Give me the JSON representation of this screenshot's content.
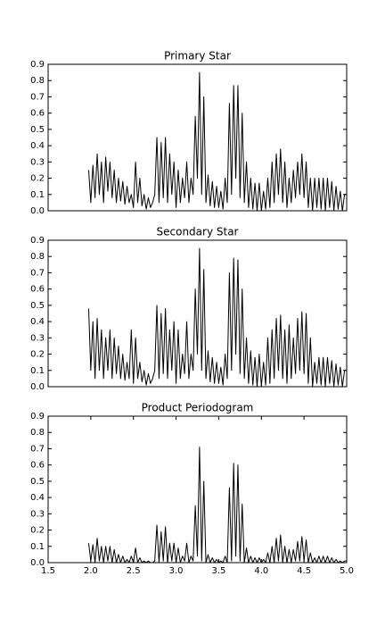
{
  "chart_data": [
    {
      "type": "line",
      "title": "Primary Star",
      "color": "#000000",
      "xlim": [
        1.5,
        5.0
      ],
      "ylim": [
        0,
        0.9
      ],
      "yticks": [
        {
          "value": 0,
          "label": "0.0"
        },
        0.1,
        0.2,
        0.3,
        0.4,
        0.5,
        0.6,
        0.7,
        0.8,
        0.9
      ],
      "x": [
        1.975,
        2.0,
        2.025,
        2.05,
        2.075,
        2.1,
        2.125,
        2.15,
        2.175,
        2.2,
        2.225,
        2.25,
        2.275,
        2.3,
        2.325,
        2.35,
        2.375,
        2.4,
        2.425,
        2.45,
        2.475,
        2.5,
        2.525,
        2.55,
        2.575,
        2.6,
        2.625,
        2.65,
        2.675,
        2.7,
        2.725,
        2.75,
        2.775,
        2.8,
        2.825,
        2.85,
        2.875,
        2.9,
        2.925,
        2.95,
        2.975,
        3.0,
        3.025,
        3.05,
        3.075,
        3.1,
        3.125,
        3.15,
        3.175,
        3.2,
        3.225,
        3.25,
        3.275,
        3.3,
        3.325,
        3.35,
        3.375,
        3.4,
        3.425,
        3.45,
        3.475,
        3.5,
        3.525,
        3.55,
        3.575,
        3.6,
        3.625,
        3.65,
        3.675,
        3.7,
        3.725,
        3.75,
        3.775,
        3.8,
        3.825,
        3.85,
        3.875,
        3.9,
        3.925,
        3.95,
        3.975,
        4.0,
        4.025,
        4.05,
        4.075,
        4.1,
        4.125,
        4.15,
        4.175,
        4.2,
        4.225,
        4.25,
        4.275,
        4.3,
        4.325,
        4.35,
        4.375,
        4.4,
        4.425,
        4.45,
        4.475,
        4.5,
        4.525,
        4.55,
        4.575,
        4.6,
        4.625,
        4.65,
        4.675,
        4.7,
        4.725,
        4.75,
        4.775,
        4.8,
        4.825,
        4.85,
        4.875,
        4.9,
        4.925,
        4.95,
        4.975,
        5.0
      ],
      "values": [
        0.25,
        0.05,
        0.28,
        0.08,
        0.35,
        0.1,
        0.3,
        0.05,
        0.33,
        0.12,
        0.3,
        0.08,
        0.25,
        0.05,
        0.2,
        0.06,
        0.18,
        0.04,
        0.15,
        0.05,
        0.1,
        0.02,
        0.3,
        0.05,
        0.2,
        0.03,
        0.1,
        0.01,
        0.08,
        0.02,
        0.05,
        0.1,
        0.45,
        0.05,
        0.42,
        0.08,
        0.45,
        0.05,
        0.35,
        0.1,
        0.3,
        0.02,
        0.25,
        0.05,
        0.2,
        0.08,
        0.3,
        0.05,
        0.2,
        0.1,
        0.58,
        0.2,
        0.85,
        0.1,
        0.7,
        0.05,
        0.22,
        0.03,
        0.18,
        0.02,
        0.15,
        0.02,
        0.12,
        0.01,
        0.2,
        0.05,
        0.66,
        0.1,
        0.77,
        0.2,
        0.77,
        0.08,
        0.6,
        0.05,
        0.3,
        0.02,
        0.2,
        0.01,
        0.17,
        0.0,
        0.17,
        0.0,
        0.12,
        0.01,
        0.2,
        0.02,
        0.3,
        0.05,
        0.35,
        0.1,
        0.38,
        0.05,
        0.3,
        0.02,
        0.2,
        0.05,
        0.25,
        0.08,
        0.3,
        0.1,
        0.35,
        0.08,
        0.3,
        0.02,
        0.2,
        0.0,
        0.2,
        0.02,
        0.2,
        0.01,
        0.2,
        0.0,
        0.2,
        0.02,
        0.18,
        0.0,
        0.15,
        0.01,
        0.12,
        0.0,
        0.1,
        0.1
      ]
    },
    {
      "type": "line",
      "title": "Secondary Star",
      "color": "#000000",
      "xlim": [
        1.5,
        5.0
      ],
      "ylim": [
        0,
        0.9
      ],
      "yticks": [
        {
          "value": 0,
          "label": "0.0"
        },
        0.1,
        0.2,
        0.3,
        0.4,
        0.5,
        0.6,
        0.7,
        0.8,
        0.9
      ],
      "x": [
        1.975,
        2.0,
        2.025,
        2.05,
        2.075,
        2.1,
        2.125,
        2.15,
        2.175,
        2.2,
        2.225,
        2.25,
        2.275,
        2.3,
        2.325,
        2.35,
        2.375,
        2.4,
        2.425,
        2.45,
        2.475,
        2.5,
        2.525,
        2.55,
        2.575,
        2.6,
        2.625,
        2.65,
        2.675,
        2.7,
        2.725,
        2.75,
        2.775,
        2.8,
        2.825,
        2.85,
        2.875,
        2.9,
        2.925,
        2.95,
        2.975,
        3.0,
        3.025,
        3.05,
        3.075,
        3.1,
        3.125,
        3.15,
        3.175,
        3.2,
        3.225,
        3.25,
        3.275,
        3.3,
        3.325,
        3.35,
        3.375,
        3.4,
        3.425,
        3.45,
        3.475,
        3.5,
        3.525,
        3.55,
        3.575,
        3.6,
        3.625,
        3.65,
        3.675,
        3.7,
        3.725,
        3.75,
        3.775,
        3.8,
        3.825,
        3.85,
        3.875,
        3.9,
        3.925,
        3.95,
        3.975,
        4.0,
        4.025,
        4.05,
        4.075,
        4.1,
        4.125,
        4.15,
        4.175,
        4.2,
        4.225,
        4.25,
        4.275,
        4.3,
        4.325,
        4.35,
        4.375,
        4.4,
        4.425,
        4.45,
        4.475,
        4.5,
        4.525,
        4.55,
        4.575,
        4.6,
        4.625,
        4.65,
        4.675,
        4.7,
        4.725,
        4.75,
        4.775,
        4.8,
        4.825,
        4.85,
        4.875,
        4.9,
        4.925,
        4.95,
        4.975,
        5.0
      ],
      "values": [
        0.48,
        0.1,
        0.4,
        0.05,
        0.42,
        0.1,
        0.35,
        0.05,
        0.3,
        0.1,
        0.35,
        0.05,
        0.3,
        0.08,
        0.25,
        0.05,
        0.2,
        0.04,
        0.15,
        0.05,
        0.35,
        0.02,
        0.3,
        0.05,
        0.15,
        0.03,
        0.1,
        0.01,
        0.08,
        0.02,
        0.05,
        0.1,
        0.5,
        0.05,
        0.45,
        0.08,
        0.48,
        0.05,
        0.35,
        0.1,
        0.4,
        0.02,
        0.35,
        0.05,
        0.2,
        0.08,
        0.4,
        0.05,
        0.2,
        0.1,
        0.6,
        0.2,
        0.85,
        0.1,
        0.72,
        0.05,
        0.22,
        0.03,
        0.18,
        0.02,
        0.15,
        0.02,
        0.12,
        0.01,
        0.2,
        0.05,
        0.7,
        0.1,
        0.79,
        0.2,
        0.78,
        0.08,
        0.6,
        0.05,
        0.3,
        0.02,
        0.22,
        0.01,
        0.18,
        0.0,
        0.2,
        0.0,
        0.15,
        0.01,
        0.3,
        0.02,
        0.35,
        0.05,
        0.42,
        0.1,
        0.44,
        0.05,
        0.35,
        0.02,
        0.38,
        0.05,
        0.3,
        0.08,
        0.42,
        0.1,
        0.46,
        0.08,
        0.45,
        0.02,
        0.3,
        0.0,
        0.15,
        0.02,
        0.18,
        0.01,
        0.18,
        0.0,
        0.18,
        0.02,
        0.16,
        0.0,
        0.14,
        0.01,
        0.12,
        0.0,
        0.1,
        0.1
      ]
    },
    {
      "type": "line",
      "title": "Product Periodogram",
      "color": "#000000",
      "xlim": [
        1.5,
        5.0
      ],
      "ylim": [
        0,
        0.9
      ],
      "xticks": [
        1.5,
        {
          "value": 2,
          "label": "2.0"
        },
        2.5,
        {
          "value": 3,
          "label": "3.0"
        },
        3.5,
        {
          "value": 4,
          "label": "4.0"
        },
        4.5,
        {
          "value": 5,
          "label": "5.0"
        }
      ],
      "yticks": [
        {
          "value": 0,
          "label": "0.0"
        },
        0.1,
        0.2,
        0.3,
        0.4,
        0.5,
        0.6,
        0.7,
        0.8,
        0.9
      ],
      "x": [
        1.975,
        2.0,
        2.025,
        2.05,
        2.075,
        2.1,
        2.125,
        2.15,
        2.175,
        2.2,
        2.225,
        2.25,
        2.275,
        2.3,
        2.325,
        2.35,
        2.375,
        2.4,
        2.425,
        2.45,
        2.475,
        2.5,
        2.525,
        2.55,
        2.575,
        2.6,
        2.625,
        2.65,
        2.675,
        2.7,
        2.725,
        2.75,
        2.775,
        2.8,
        2.825,
        2.85,
        2.875,
        2.9,
        2.925,
        2.95,
        2.975,
        3.0,
        3.025,
        3.05,
        3.075,
        3.1,
        3.125,
        3.15,
        3.175,
        3.2,
        3.225,
        3.25,
        3.275,
        3.3,
        3.325,
        3.35,
        3.375,
        3.4,
        3.425,
        3.45,
        3.475,
        3.5,
        3.525,
        3.55,
        3.575,
        3.6,
        3.625,
        3.65,
        3.675,
        3.7,
        3.725,
        3.75,
        3.775,
        3.8,
        3.825,
        3.85,
        3.875,
        3.9,
        3.925,
        3.95,
        3.975,
        4.0,
        4.025,
        4.05,
        4.075,
        4.1,
        4.125,
        4.15,
        4.175,
        4.2,
        4.225,
        4.25,
        4.275,
        4.3,
        4.325,
        4.35,
        4.375,
        4.4,
        4.425,
        4.45,
        4.475,
        4.5,
        4.525,
        4.55,
        4.575,
        4.6,
        4.625,
        4.65,
        4.675,
        4.7,
        4.725,
        4.75,
        4.775,
        4.8,
        4.825,
        4.85,
        4.875,
        4.9,
        4.925,
        4.95,
        4.975,
        5.0
      ],
      "values": [
        0.12,
        0.01,
        0.11,
        0.0,
        0.15,
        0.01,
        0.1,
        0.0,
        0.1,
        0.01,
        0.1,
        0.0,
        0.08,
        0.0,
        0.05,
        0.0,
        0.04,
        0.0,
        0.02,
        0.0,
        0.04,
        0.0,
        0.09,
        0.0,
        0.03,
        0.0,
        0.01,
        0.0,
        0.01,
        0.0,
        0.0,
        0.01,
        0.23,
        0.0,
        0.19,
        0.01,
        0.22,
        0.0,
        0.12,
        0.01,
        0.12,
        0.0,
        0.09,
        0.0,
        0.04,
        0.01,
        0.12,
        0.0,
        0.04,
        0.01,
        0.35,
        0.04,
        0.71,
        0.01,
        0.5,
        0.0,
        0.05,
        0.0,
        0.03,
        0.0,
        0.02,
        0.0,
        0.01,
        0.0,
        0.04,
        0.0,
        0.46,
        0.01,
        0.61,
        0.04,
        0.6,
        0.01,
        0.36,
        0.0,
        0.09,
        0.0,
        0.04,
        0.0,
        0.03,
        0.0,
        0.03,
        0.0,
        0.02,
        0.0,
        0.06,
        0.0,
        0.1,
        0.0,
        0.15,
        0.01,
        0.17,
        0.0,
        0.1,
        0.0,
        0.08,
        0.0,
        0.08,
        0.01,
        0.13,
        0.01,
        0.16,
        0.01,
        0.14,
        0.0,
        0.06,
        0.0,
        0.03,
        0.0,
        0.04,
        0.0,
        0.04,
        0.0,
        0.04,
        0.0,
        0.03,
        0.0,
        0.02,
        0.0,
        0.01,
        0.0,
        0.01,
        0.01
      ]
    }
  ]
}
